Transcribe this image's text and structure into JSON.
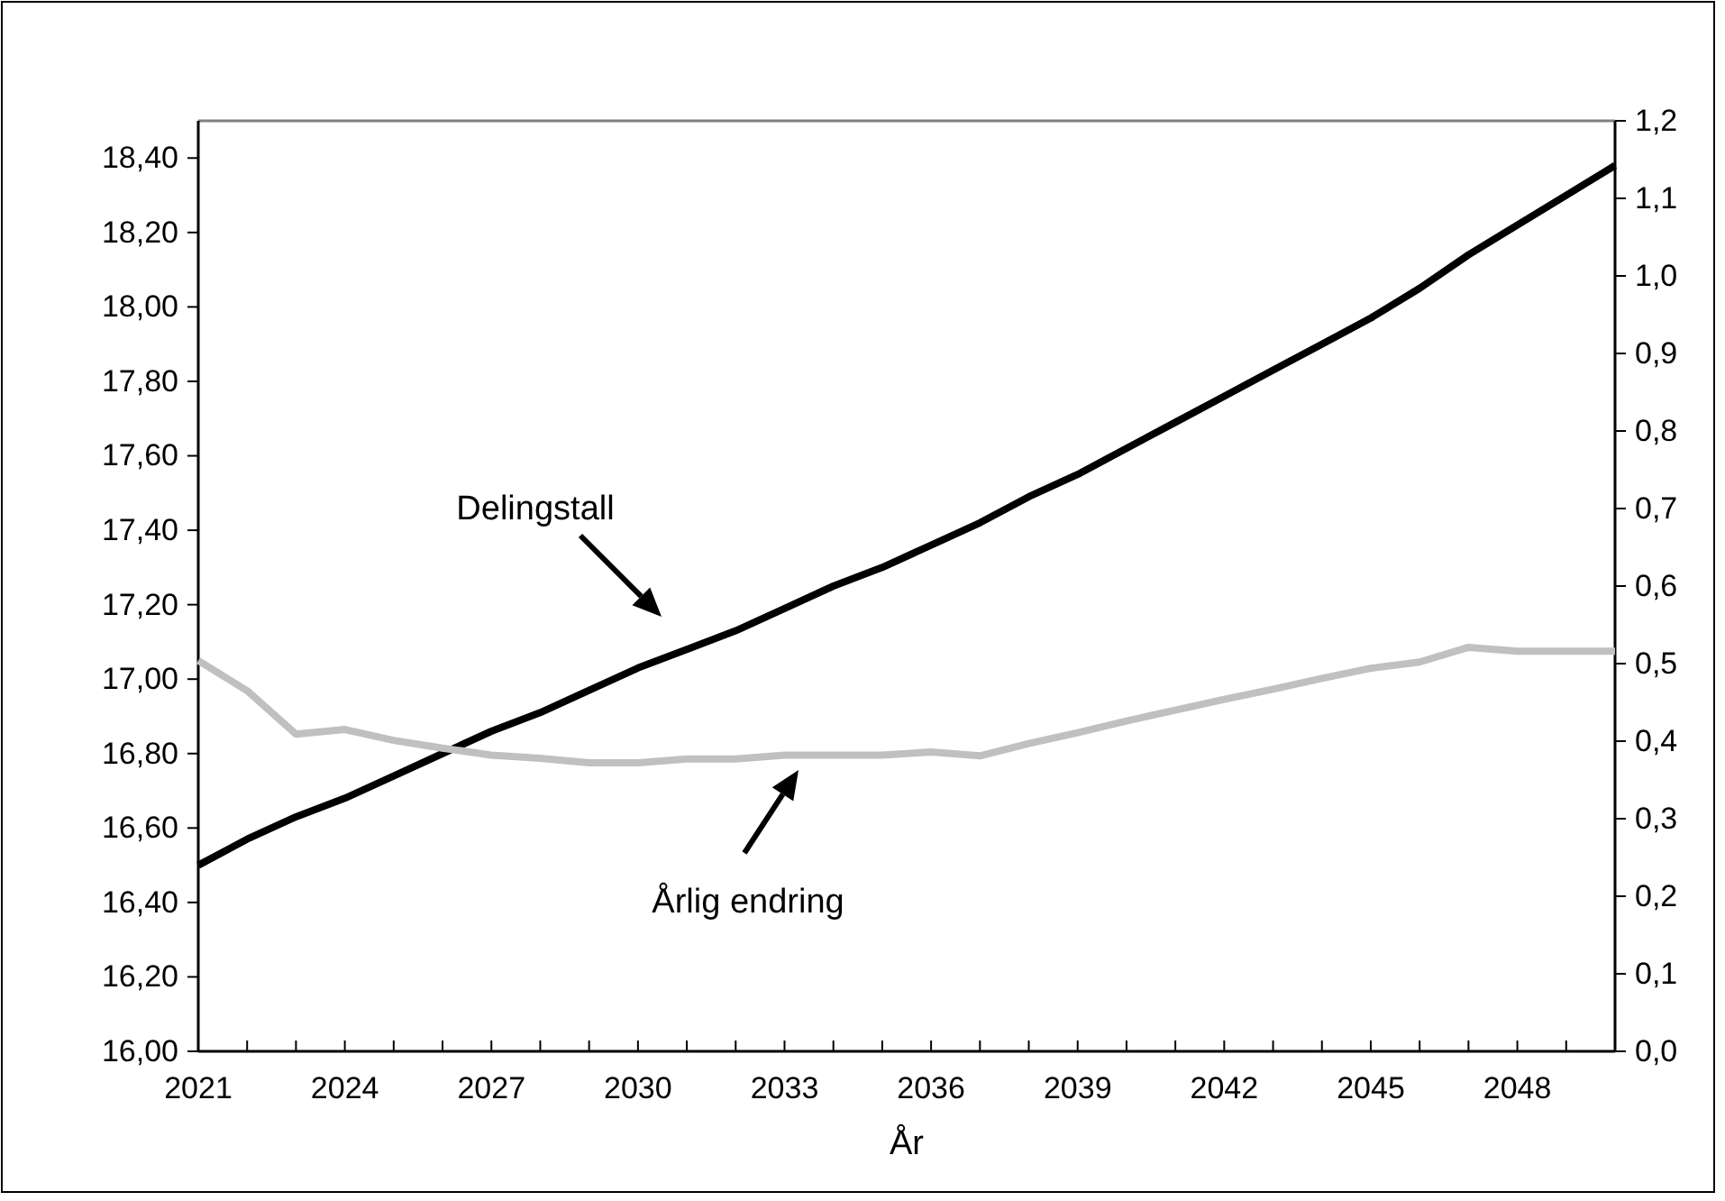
{
  "chart_data": {
    "type": "line",
    "xlabel": "År",
    "annotations": [
      "Delingstall",
      "Årlig endring"
    ],
    "x": [
      2021,
      2022,
      2023,
      2024,
      2025,
      2026,
      2027,
      2028,
      2029,
      2030,
      2031,
      2032,
      2033,
      2034,
      2035,
      2036,
      2037,
      2038,
      2039,
      2040,
      2041,
      2042,
      2043,
      2044,
      2045,
      2046,
      2047,
      2048,
      2049,
      2050
    ],
    "series": [
      {
        "color": "#000000",
        "values": [
          16.5,
          16.57,
          16.63,
          16.68,
          16.74,
          16.8,
          16.86,
          16.91,
          16.97,
          17.03,
          17.08,
          17.13,
          17.19,
          17.25,
          17.3,
          17.36,
          17.42,
          17.49,
          17.55,
          17.62,
          17.69,
          17.76,
          17.83,
          17.9,
          17.97,
          18.05,
          18.14,
          18.22,
          18.3,
          18.38
        ]
      },
      {
        "color": "#c0c0c0",
        "axis": "y2",
        "values": [
          0.504,
          0.465,
          0.409,
          0.415,
          0.401,
          0.391,
          0.382,
          0.378,
          0.372,
          0.372,
          0.377,
          0.377,
          0.382,
          0.382,
          0.382,
          0.386,
          0.381,
          0.397,
          0.411,
          0.426,
          0.44,
          0.454,
          0.467,
          0.481,
          0.494,
          0.502,
          0.521,
          0.516,
          0.516,
          0.516
        ]
      }
    ],
    "xlim": [
      2021,
      2050
    ],
    "xticks": [
      2021,
      {
        "value": 2022,
        "label": null
      },
      {
        "value": 2023,
        "label": null
      },
      2024,
      {
        "value": 2025,
        "label": null
      },
      {
        "value": 2026,
        "label": null
      },
      2027,
      {
        "value": 2028,
        "label": null
      },
      {
        "value": 2029,
        "label": null
      },
      2030,
      {
        "value": 2031,
        "label": null
      },
      {
        "value": 2032,
        "label": null
      },
      2033,
      {
        "value": 2034,
        "label": null
      },
      {
        "value": 2035,
        "label": null
      },
      2036,
      {
        "value": 2037,
        "label": null
      },
      {
        "value": 2038,
        "label": null
      },
      2039,
      {
        "value": 2040,
        "label": null
      },
      {
        "value": 2041,
        "label": null
      },
      2042,
      {
        "value": 2043,
        "label": null
      },
      {
        "value": 2044,
        "label": null
      },
      2045,
      {
        "value": 2046,
        "label": null
      },
      {
        "value": 2047,
        "label": null
      },
      2048,
      {
        "value": 2049,
        "label": null
      },
      {
        "value": 2050,
        "label": null
      }
    ],
    "ylim": [
      16,
      18.5
    ],
    "yticks": [
      {
        "value": 16,
        "label": "16,00"
      },
      {
        "value": 16.2,
        "label": "16,20"
      },
      {
        "value": 16.4,
        "label": "16,40"
      },
      {
        "value": 16.6,
        "label": "16,60"
      },
      {
        "value": 16.8,
        "label": "16,80"
      },
      {
        "value": 17,
        "label": "17,00"
      },
      {
        "value": 17.2,
        "label": "17,20"
      },
      {
        "value": 17.4,
        "label": "17,40"
      },
      {
        "value": 17.6,
        "label": "17,60"
      },
      {
        "value": 17.8,
        "label": "17,80"
      },
      {
        "value": 18,
        "label": "18,00"
      },
      {
        "value": 18.2,
        "label": "18,20"
      },
      {
        "value": 18.4,
        "label": "18,40"
      }
    ],
    "y2lim": [
      0,
      1.2
    ],
    "y2ticks": [
      {
        "value": 0,
        "label": "0,0"
      },
      {
        "value": 0.1,
        "label": "0,1"
      },
      {
        "value": 0.2,
        "label": "0,2"
      },
      {
        "value": 0.3,
        "label": "0,3"
      },
      {
        "value": 0.4,
        "label": "0,4"
      },
      {
        "value": 0.5,
        "label": "0,5"
      },
      {
        "value": 0.6,
        "label": "0,6"
      },
      {
        "value": 0.7,
        "label": "0,7"
      },
      {
        "value": 0.8,
        "label": "0,8"
      },
      {
        "value": 0.9,
        "label": "0,9"
      },
      {
        "value": 1,
        "label": "1,0"
      },
      {
        "value": 1.1,
        "label": "1,1"
      },
      {
        "value": 1.2,
        "label": "1,2"
      }
    ],
    "grid": false,
    "legend": false,
    "marker": "none",
    "line_style": "solid"
  }
}
